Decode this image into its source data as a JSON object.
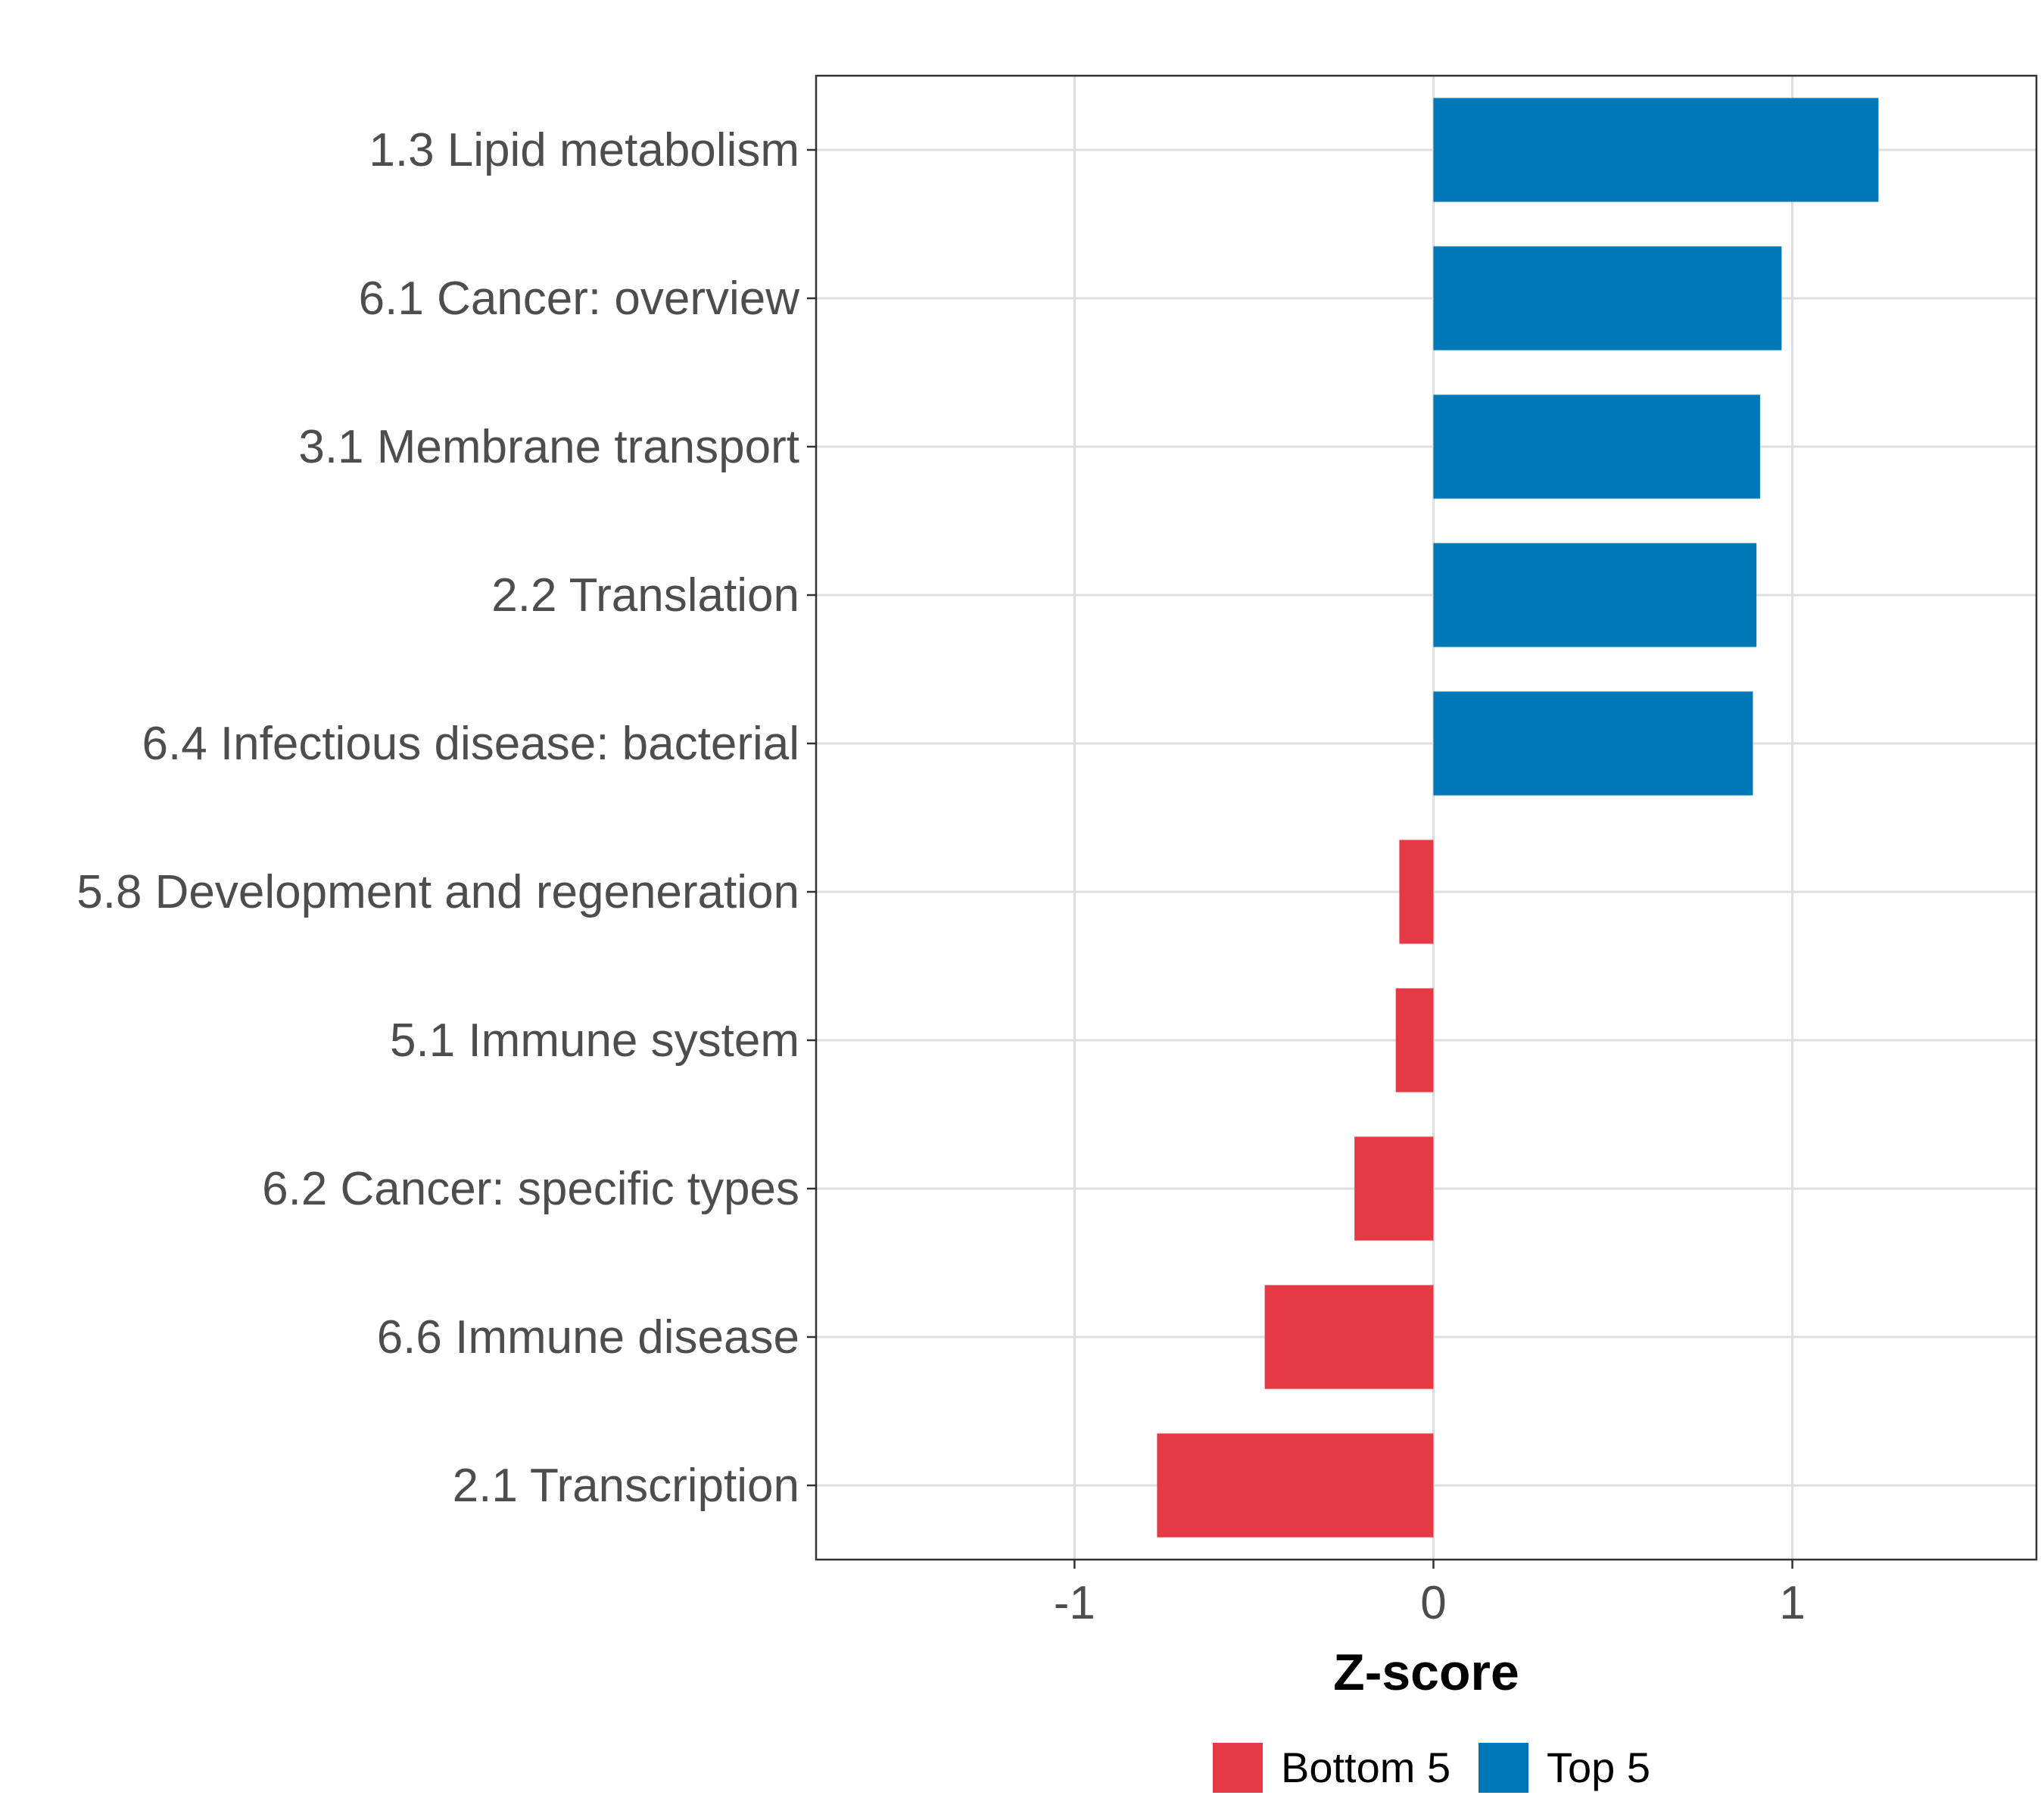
{
  "chart_data": {
    "type": "bar",
    "orientation": "horizontal",
    "title": "",
    "xlabel": "Z-score",
    "ylabel": "",
    "xlim": [
      -1.72,
      1.68
    ],
    "xticks": [
      -1,
      0,
      1
    ],
    "xtick_labels": [
      "-1",
      "0",
      "1"
    ],
    "grid": true,
    "legend_position": "bottom",
    "categories": [
      "1.3 Lipid metabolism",
      "6.1 Cancer: overview",
      "3.1 Membrane transport",
      "2.2 Translation",
      "6.4 Infectious disease: bacterial",
      "5.8 Development and regeneration",
      "5.1 Immune system",
      "6.2 Cancer: specific types",
      "6.6 Immune disease",
      "2.1 Transcription"
    ],
    "values": [
      1.24,
      0.97,
      0.91,
      0.9,
      0.89,
      -0.095,
      -0.105,
      -0.22,
      -0.47,
      -0.77
    ],
    "groups": [
      "Top 5",
      "Top 5",
      "Top 5",
      "Top 5",
      "Top 5",
      "Bottom 5",
      "Bottom 5",
      "Bottom 5",
      "Bottom 5",
      "Bottom 5"
    ],
    "legend": [
      {
        "name": "Bottom 5",
        "color": "#E63946"
      },
      {
        "name": "Top 5",
        "color": "#0077B6"
      }
    ]
  }
}
